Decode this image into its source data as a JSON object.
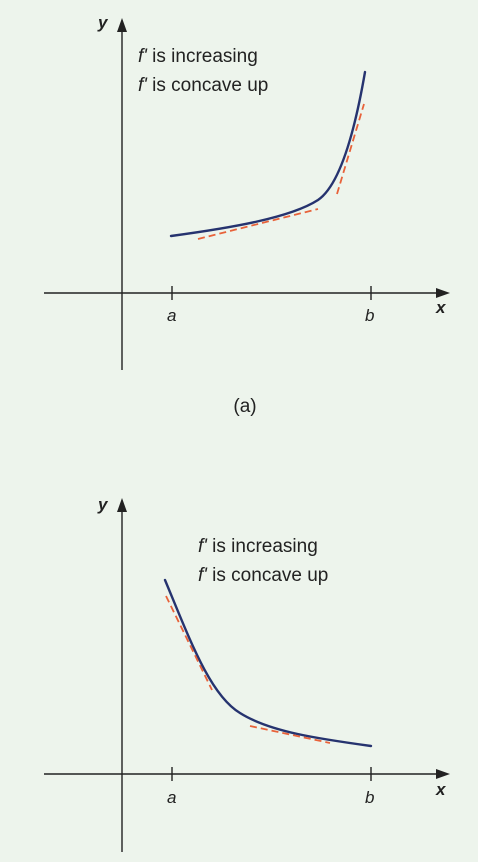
{
  "panels": [
    {
      "axis_y_label": "y",
      "axis_x_label": "x",
      "tick_a": "a",
      "tick_b": "b",
      "annotation_line1_fn": "f'",
      "annotation_line1_rest": " is increasing",
      "annotation_line2_fn": "f'",
      "annotation_line2_rest": " is concave up",
      "caption": "(a)"
    },
    {
      "axis_y_label": "y",
      "axis_x_label": "x",
      "tick_a": "a",
      "tick_b": "b",
      "annotation_line1_fn": "f'",
      "annotation_line1_rest": " is increasing",
      "annotation_line2_fn": "f'",
      "annotation_line2_rest": " is concave up",
      "caption": ""
    }
  ],
  "colors": {
    "background": "#edf4ec",
    "curve": "#26336f",
    "tangent_dashed": "#e8623a",
    "axes": "#222222"
  }
}
